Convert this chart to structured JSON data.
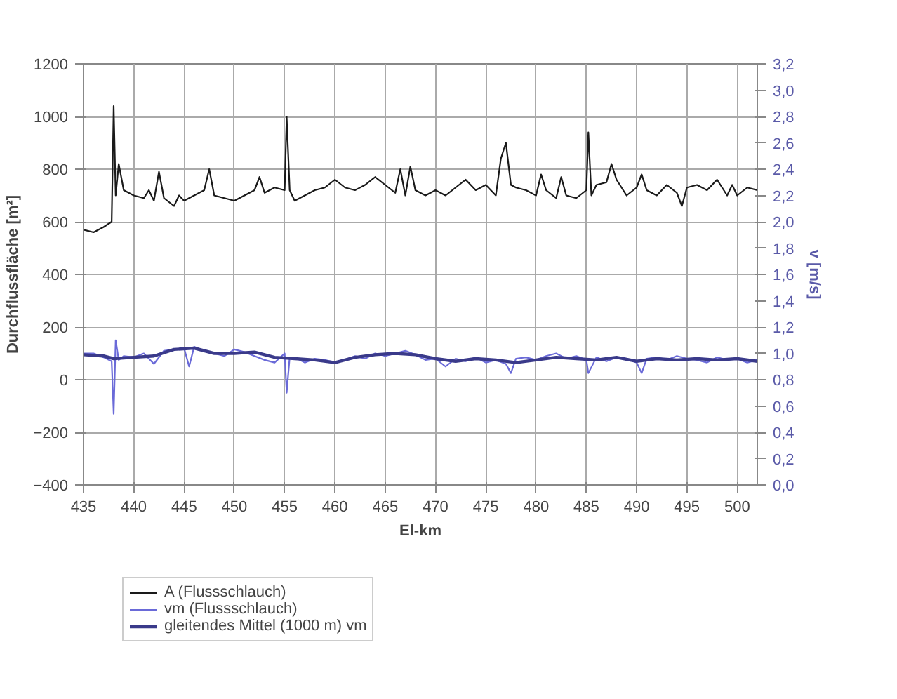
{
  "chart_data": {
    "type": "line",
    "xlabel": "El-km",
    "ylabel": "Durchflussfläche [m²]",
    "y2label": "v [m/s]",
    "xlim": [
      435,
      502
    ],
    "xticks": [
      435,
      440,
      445,
      450,
      455,
      460,
      465,
      470,
      475,
      480,
      485,
      490,
      495,
      500
    ],
    "ylim": [
      -400,
      1200
    ],
    "yticks": [
      -400,
      -200,
      0,
      200,
      400,
      600,
      800,
      1000,
      1200
    ],
    "y2lim": [
      0,
      3.2
    ],
    "y2ticks": [
      {
        "value": 0,
        "label": "0,0"
      },
      {
        "value": 0.2,
        "label": "0,2"
      },
      {
        "value": 0.4,
        "label": "0,4"
      },
      {
        "value": 0.6,
        "label": "0,6"
      },
      {
        "value": 0.8,
        "label": "0,8"
      },
      {
        "value": 1.0,
        "label": "1,0"
      },
      {
        "value": 1.2,
        "label": "1,2"
      },
      {
        "value": 1.4,
        "label": "1,4"
      },
      {
        "value": 1.6,
        "label": "1,6"
      },
      {
        "value": 1.8,
        "label": "1,8"
      },
      {
        "value": 2.0,
        "label": "2,0"
      },
      {
        "value": 2.2,
        "label": "2,2"
      },
      {
        "value": 2.4,
        "label": "2,4"
      },
      {
        "value": 2.6,
        "label": "2,6"
      },
      {
        "value": 2.8,
        "label": "2,8"
      },
      {
        "value": 3.0,
        "label": "3,0"
      },
      {
        "value": 3.2,
        "label": "3,2"
      }
    ],
    "grid": true,
    "legend": "bottom",
    "marker": "none",
    "line_style": "solid",
    "series": [
      {
        "name": "A (Flussschlauch)",
        "color": "#1a1a1a",
        "x": [
          435,
          436,
          437,
          437.8,
          438,
          438.2,
          438.5,
          439,
          440,
          441,
          441.5,
          442,
          442.5,
          443,
          444,
          444.5,
          445,
          446,
          447,
          447.5,
          448,
          449,
          450,
          451,
          452,
          452.5,
          453,
          454,
          455,
          455.2,
          455.5,
          456,
          457,
          458,
          459,
          460,
          461,
          462,
          463,
          464,
          465,
          466,
          466.5,
          467,
          467.5,
          468,
          469,
          470,
          471,
          472,
          473,
          474,
          475,
          476,
          476.5,
          477,
          477.5,
          478,
          479,
          480,
          480.5,
          481,
          482,
          482.5,
          483,
          484,
          485,
          485.2,
          485.5,
          486,
          487,
          487.5,
          488,
          489,
          490,
          490.5,
          491,
          492,
          493,
          494,
          494.5,
          495,
          496,
          497,
          498,
          499,
          499.5,
          500,
          501,
          502
        ],
        "values": [
          570,
          560,
          580,
          600,
          1040,
          700,
          820,
          720,
          700,
          690,
          720,
          680,
          790,
          690,
          660,
          700,
          680,
          700,
          720,
          800,
          700,
          690,
          680,
          700,
          720,
          770,
          710,
          730,
          720,
          1000,
          720,
          680,
          700,
          720,
          730,
          760,
          730,
          720,
          740,
          770,
          740,
          710,
          800,
          700,
          810,
          720,
          700,
          720,
          700,
          730,
          760,
          720,
          740,
          700,
          840,
          900,
          740,
          730,
          720,
          700,
          780,
          720,
          690,
          770,
          700,
          690,
          720,
          940,
          700,
          740,
          750,
          820,
          760,
          700,
          730,
          780,
          720,
          700,
          740,
          710,
          660,
          730,
          740,
          720,
          760,
          700,
          740,
          700,
          730,
          720
        ]
      },
      {
        "name": "vm (Flussschlauch)",
        "color": "#6a6ad8",
        "axis": "y2",
        "x": [
          435,
          436,
          437,
          437.8,
          438,
          438.2,
          438.5,
          439,
          440,
          441,
          442,
          443,
          444,
          445,
          445.5,
          446,
          447,
          448,
          449,
          450,
          451,
          452,
          453,
          454,
          455,
          455.2,
          455.5,
          456,
          457,
          458,
          459,
          460,
          461,
          462,
          463,
          464,
          465,
          466,
          467,
          468,
          469,
          470,
          471,
          472,
          473,
          474,
          475,
          476,
          477,
          477.5,
          478,
          479,
          480,
          481,
          482,
          483,
          484,
          485,
          485.2,
          486,
          487,
          488,
          489,
          490,
          490.5,
          491,
          492,
          493,
          494,
          495,
          496,
          497,
          498,
          499,
          500,
          501,
          502
        ],
        "values": [
          1.0,
          1.0,
          0.97,
          0.94,
          0.54,
          1.1,
          0.95,
          0.98,
          0.97,
          1.0,
          0.92,
          1.02,
          1.03,
          1.04,
          0.9,
          1.05,
          1.02,
          1.0,
          0.98,
          1.03,
          1.01,
          0.98,
          0.95,
          0.93,
          1.0,
          0.7,
          0.97,
          0.97,
          0.93,
          0.96,
          0.95,
          0.93,
          0.95,
          0.98,
          0.96,
          1.0,
          0.98,
          1.0,
          1.02,
          0.99,
          0.95,
          0.96,
          0.9,
          0.96,
          0.94,
          0.97,
          0.93,
          0.95,
          0.92,
          0.85,
          0.96,
          0.97,
          0.95,
          0.98,
          1.0,
          0.96,
          0.98,
          0.95,
          0.85,
          0.97,
          0.94,
          0.97,
          0.96,
          0.93,
          0.85,
          0.96,
          0.97,
          0.95,
          0.98,
          0.96,
          0.95,
          0.93,
          0.97,
          0.95,
          0.96,
          0.93,
          0.95
        ]
      },
      {
        "name": "gleitendes Mittel (1000 m) vm",
        "color": "#3a3a8a",
        "axis": "y2",
        "x": [
          435,
          437,
          438,
          440,
          442,
          444,
          446,
          448,
          450,
          452,
          454,
          456,
          458,
          460,
          462,
          464,
          466,
          468,
          470,
          472,
          474,
          476,
          478,
          480,
          482,
          484,
          486,
          488,
          490,
          492,
          494,
          496,
          498,
          500,
          502
        ],
        "values": [
          0.99,
          0.98,
          0.96,
          0.97,
          0.98,
          1.03,
          1.04,
          1.0,
          1.0,
          1.01,
          0.97,
          0.96,
          0.95,
          0.93,
          0.97,
          0.99,
          1.0,
          0.99,
          0.96,
          0.94,
          0.96,
          0.95,
          0.93,
          0.95,
          0.97,
          0.96,
          0.95,
          0.97,
          0.94,
          0.96,
          0.95,
          0.96,
          0.95,
          0.96,
          0.94
        ]
      }
    ]
  }
}
